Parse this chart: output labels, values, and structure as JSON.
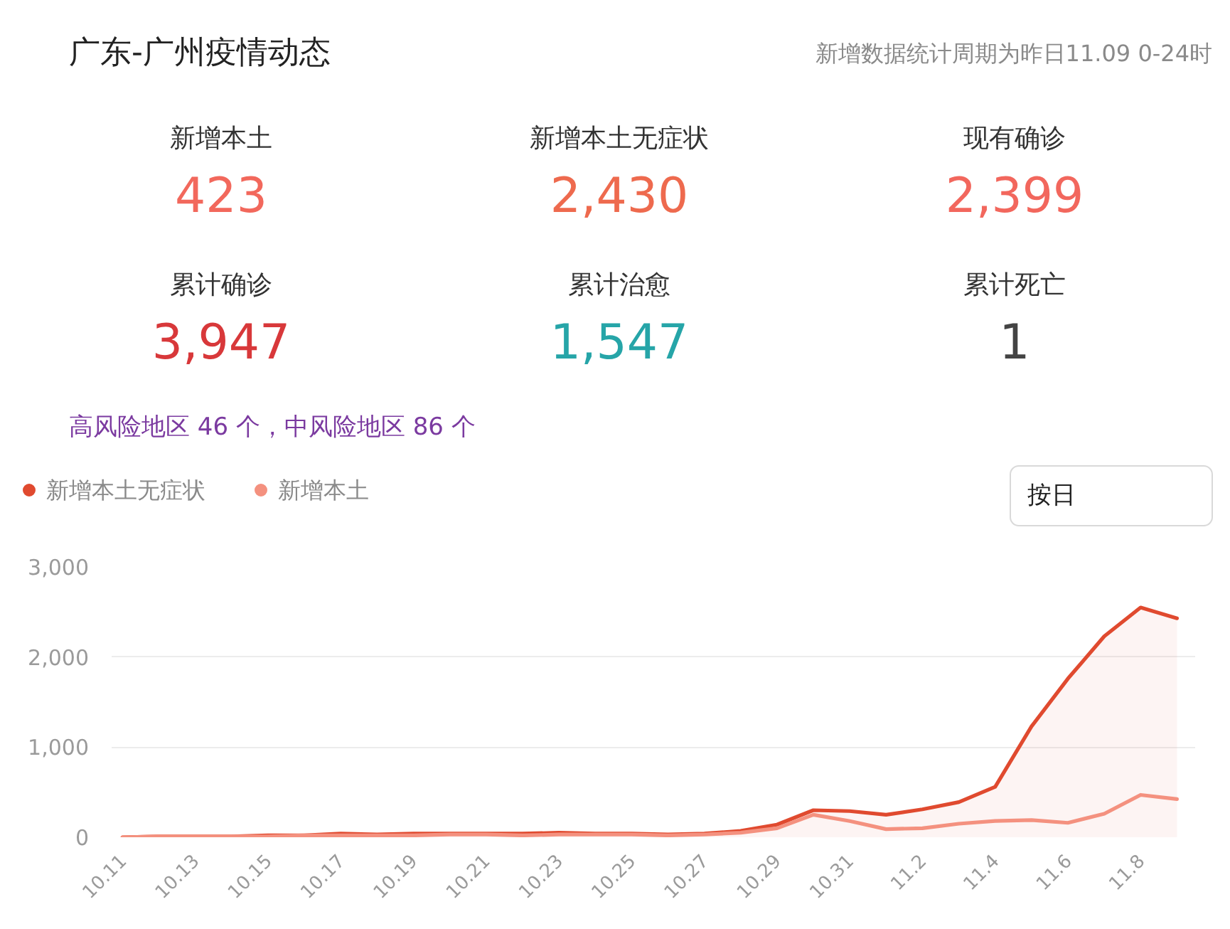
{
  "chart_data": [
    {
      "type": "other",
      "title": "广东-广州疫情动态",
      "subtitle": "新增数据统计周期为昨日11.09 0-24时",
      "annotations": [
        "新增本土",
        "423",
        "新增本土无症状",
        "2,430",
        "现有确诊",
        "2,399",
        "累计确诊",
        "3,947",
        "累计治愈",
        "1,547",
        "累计死亡",
        "1",
        "高风险地区 46 个，中风险地区 86 个"
      ]
    },
    {
      "type": "line",
      "categories": [
        "10.11",
        null,
        "10.13",
        null,
        "10.15",
        null,
        "10.17",
        null,
        "10.19",
        null,
        "10.21",
        null,
        "10.23",
        null,
        "10.25",
        null,
        "10.27",
        null,
        "10.29",
        null,
        "10.31",
        null,
        "11.2",
        null,
        "11.4",
        null,
        "11.6",
        null,
        "11.8",
        null
      ],
      "series": [
        {
          "name": "新增本土无症状",
          "type": "area",
          "color": "#e04a2f",
          "values": [
            0,
            10,
            10,
            10,
            20,
            20,
            40,
            30,
            40,
            40,
            40,
            40,
            50,
            40,
            40,
            30,
            40,
            70,
            140,
            300,
            290,
            250,
            310,
            390,
            560,
            1230,
            1760,
            2230,
            2550,
            2430
          ]
        },
        {
          "name": "新增本土",
          "type": "line",
          "color": "#f4917f",
          "values": [
            0,
            10,
            10,
            10,
            10,
            20,
            20,
            20,
            20,
            30,
            30,
            20,
            30,
            30,
            30,
            20,
            30,
            50,
            100,
            250,
            180,
            90,
            100,
            150,
            180,
            190,
            160,
            260,
            470,
            423
          ]
        }
      ],
      "ylim": [
        0,
        3000
      ],
      "yticks": [
        0,
        {
          "value": 1000,
          "label": "1,000"
        },
        {
          "value": 2000,
          "label": "2,000"
        },
        {
          "value": 3000,
          "label": "3,000"
        }
      ],
      "grid": "y",
      "legend": "top left",
      "annotations": [
        "按日"
      ]
    }
  ]
}
